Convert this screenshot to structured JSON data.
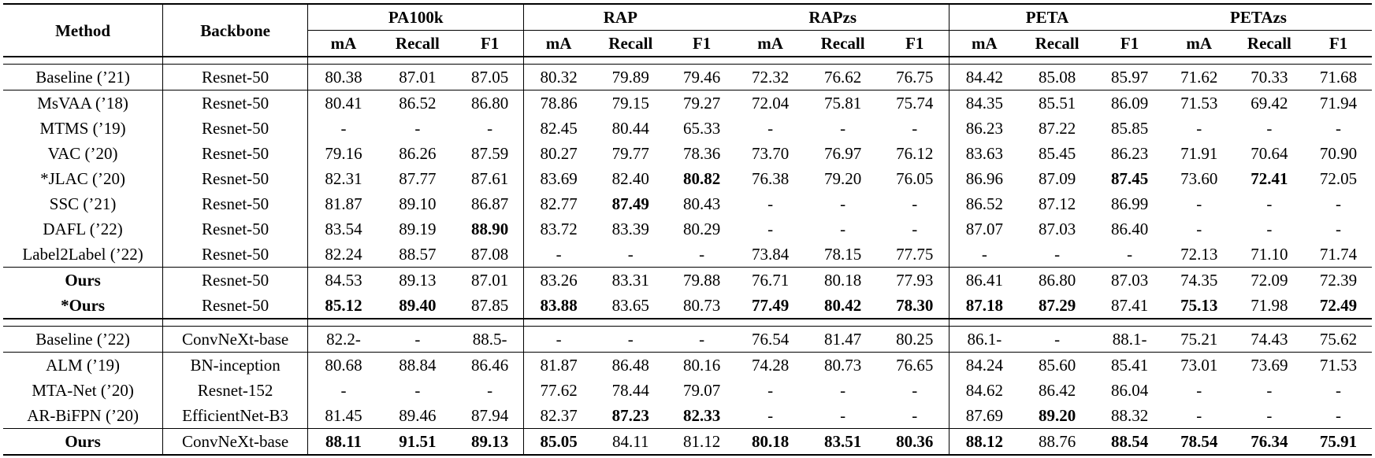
{
  "table": {
    "col_method": "Method",
    "col_backbone": "Backbone",
    "datasets": [
      "PA100k",
      "RAP",
      "RAPzs",
      "PETA",
      "PETAzs"
    ],
    "metrics": [
      "mA",
      "Recall",
      "F1"
    ],
    "sections": [
      {
        "rows": [
          {
            "method": "Baseline (’21)",
            "method_bold": false,
            "backbone": "Resnet-50",
            "values": [
              "80.38",
              "87.01",
              "87.05",
              "80.32",
              "79.89",
              "79.46",
              "72.32",
              "76.62",
              "76.75",
              "84.42",
              "85.08",
              "85.97",
              "71.62",
              "70.33",
              "71.68"
            ],
            "bold": []
          }
        ]
      },
      {
        "rows": [
          {
            "method": "MsVAA (’18)",
            "method_bold": false,
            "backbone": "Resnet-50",
            "values": [
              "80.41",
              "86.52",
              "86.80",
              "78.86",
              "79.15",
              "79.27",
              "72.04",
              "75.81",
              "75.74",
              "84.35",
              "85.51",
              "86.09",
              "71.53",
              "69.42",
              "71.94"
            ],
            "bold": []
          },
          {
            "method": "MTMS (’19)",
            "method_bold": false,
            "backbone": "Resnet-50",
            "values": [
              "-",
              "-",
              "-",
              "82.45",
              "80.44",
              "65.33",
              "-",
              "-",
              "-",
              "86.23",
              "87.22",
              "85.85",
              "-",
              "-",
              "-"
            ],
            "bold": []
          },
          {
            "method": "VAC (’20)",
            "method_bold": false,
            "backbone": "Resnet-50",
            "values": [
              "79.16",
              "86.26",
              "87.59",
              "80.27",
              "79.77",
              "78.36",
              "73.70",
              "76.97",
              "76.12",
              "83.63",
              "85.45",
              "86.23",
              "71.91",
              "70.64",
              "70.90"
            ],
            "bold": []
          },
          {
            "method": "*JLAC (’20)",
            "method_bold": false,
            "backbone": "Resnet-50",
            "values": [
              "82.31",
              "87.77",
              "87.61",
              "83.69",
              "82.40",
              "80.82",
              "76.38",
              "79.20",
              "76.05",
              "86.96",
              "87.09",
              "87.45",
              "73.60",
              "72.41",
              "72.05"
            ],
            "bold": [
              5,
              11,
              13
            ]
          },
          {
            "method": "SSC (’21)",
            "method_bold": false,
            "backbone": "Resnet-50",
            "values": [
              "81.87",
              "89.10",
              "86.87",
              "82.77",
              "87.49",
              "80.43",
              "-",
              "-",
              "-",
              "86.52",
              "87.12",
              "86.99",
              "-",
              "-",
              "-"
            ],
            "bold": [
              4
            ]
          },
          {
            "method": "DAFL (’22)",
            "method_bold": false,
            "backbone": "Resnet-50",
            "values": [
              "83.54",
              "89.19",
              "88.90",
              "83.72",
              "83.39",
              "80.29",
              "-",
              "-",
              "-",
              "87.07",
              "87.03",
              "86.40",
              "-",
              "-",
              "-"
            ],
            "bold": [
              2
            ]
          },
          {
            "method": "Label2Label (’22)",
            "method_bold": false,
            "backbone": "Resnet-50",
            "values": [
              "82.24",
              "88.57",
              "87.08",
              "-",
              "-",
              "-",
              "73.84",
              "78.15",
              "77.75",
              "-",
              "-",
              "-",
              "72.13",
              "71.10",
              "71.74"
            ],
            "bold": []
          }
        ]
      },
      {
        "rows": [
          {
            "method": "Ours",
            "method_bold": true,
            "backbone": "Resnet-50",
            "values": [
              "84.53",
              "89.13",
              "87.01",
              "83.26",
              "83.31",
              "79.88",
              "76.71",
              "80.18",
              "77.93",
              "86.41",
              "86.80",
              "87.03",
              "74.35",
              "72.09",
              "72.39"
            ],
            "bold": []
          },
          {
            "method": "*Ours",
            "method_bold": true,
            "backbone": "Resnet-50",
            "values": [
              "85.12",
              "89.40",
              "87.85",
              "83.88",
              "83.65",
              "80.73",
              "77.49",
              "80.42",
              "78.30",
              "87.18",
              "87.29",
              "87.41",
              "75.13",
              "71.98",
              "72.49"
            ],
            "bold": [
              0,
              1,
              3,
              6,
              7,
              8,
              9,
              10,
              12,
              14
            ]
          }
        ]
      },
      {
        "rows": [
          {
            "method": "Baseline (’22)",
            "method_bold": false,
            "backbone": "ConvNeXt-base",
            "values": [
              "82.2-",
              "-",
              "88.5-",
              "-",
              "-",
              "-",
              "76.54",
              "81.47",
              "80.25",
              "86.1-",
              "-",
              "88.1-",
              "75.21",
              "74.43",
              "75.62"
            ],
            "bold": []
          }
        ]
      },
      {
        "rows": [
          {
            "method": "ALM (’19)",
            "method_bold": false,
            "backbone": "BN-inception",
            "values": [
              "80.68",
              "88.84",
              "86.46",
              "81.87",
              "86.48",
              "80.16",
              "74.28",
              "80.73",
              "76.65",
              "84.24",
              "85.60",
              "85.41",
              "73.01",
              "73.69",
              "71.53"
            ],
            "bold": []
          },
          {
            "method": "MTA-Net (’20)",
            "method_bold": false,
            "backbone": "Resnet-152",
            "values": [
              "-",
              "-",
              "-",
              "77.62",
              "78.44",
              "79.07",
              "-",
              "-",
              "-",
              "84.62",
              "86.42",
              "86.04",
              "-",
              "-",
              "-"
            ],
            "bold": []
          },
          {
            "method": "AR-BiFPN (’20)",
            "method_bold": false,
            "backbone": "EfficientNet-B3",
            "values": [
              "81.45",
              "89.46",
              "87.94",
              "82.37",
              "87.23",
              "82.33",
              "-",
              "-",
              "-",
              "87.69",
              "89.20",
              "88.32",
              "-",
              "-",
              "-"
            ],
            "bold": [
              4,
              5,
              10
            ]
          }
        ]
      },
      {
        "rows": [
          {
            "method": "Ours",
            "method_bold": true,
            "backbone": "ConvNeXt-base",
            "values": [
              "88.11",
              "91.51",
              "89.13",
              "85.05",
              "84.11",
              "81.12",
              "80.18",
              "83.51",
              "80.36",
              "88.12",
              "88.76",
              "88.54",
              "78.54",
              "76.34",
              "75.91"
            ],
            "bold": [
              0,
              1,
              2,
              3,
              6,
              7,
              8,
              9,
              11,
              12,
              13,
              14
            ]
          }
        ]
      }
    ]
  }
}
